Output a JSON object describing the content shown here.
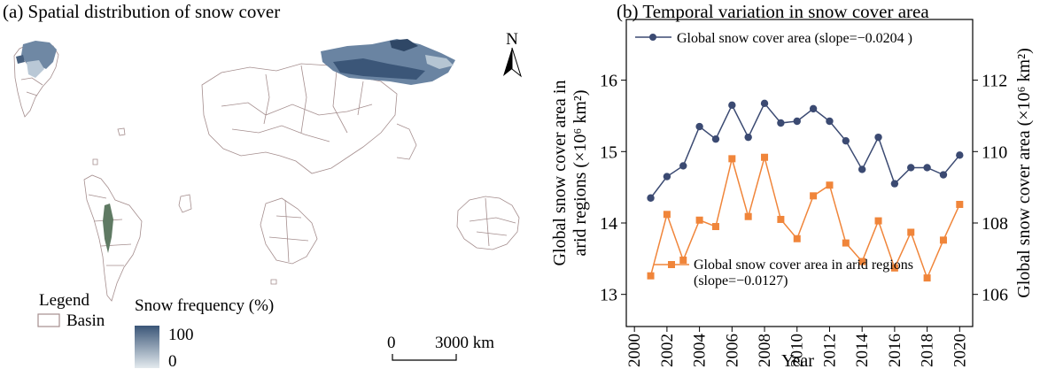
{
  "map": {
    "title": "(a) Spatial distribution of snow cover",
    "north_label": "N",
    "legend_title": "Legend",
    "legend_basin": "Basin",
    "snow_title": "Snow frequency (%)",
    "snow_max": "100",
    "snow_min": "0",
    "scale_start": "0",
    "scale_end": "3000 km",
    "colors": {
      "basin": "#a58e8e",
      "snow_dark": "#3b5678",
      "snow_light": "#dfe8ee",
      "veg": "#5f7a63"
    }
  },
  "chart_data": {
    "type": "line",
    "title": "(b) Temporal variation in snow cover area",
    "xlabel": "Year",
    "ylabel_left": [
      "Global snow cover area in",
      "arid regions (×10⁶ km²)"
    ],
    "ylabel_right": "Global snow cover area (×10⁶ km²)",
    "x": [
      2001,
      2002,
      2003,
      2004,
      2005,
      2006,
      2007,
      2008,
      2009,
      2010,
      2011,
      2012,
      2013,
      2014,
      2015,
      2016,
      2017,
      2018,
      2019,
      2020
    ],
    "xlim": [
      1999.5,
      2020.8
    ],
    "xticks": [
      "2000",
      "2002",
      "2004",
      "2006",
      "2008",
      "2010",
      "2012",
      "2014",
      "2016",
      "2018",
      "2020"
    ],
    "left_axis": {
      "ylim": [
        12.55,
        16.85
      ],
      "ticks": [
        "13",
        "14",
        "15",
        "16"
      ]
    },
    "right_axis": {
      "ylim": [
        105.1,
        113.7
      ],
      "ticks": [
        "106",
        "108",
        "110",
        "112"
      ]
    },
    "series": [
      {
        "name": "Global snow cover area (slope=−0.0204 )",
        "axis": "right",
        "color": "#3b4a72",
        "marker": "circle",
        "values": [
          108.7,
          109.3,
          109.6,
          110.7,
          110.35,
          111.3,
          110.4,
          111.35,
          110.8,
          110.85,
          111.2,
          110.85,
          110.3,
          109.5,
          110.4,
          109.1,
          109.55,
          109.55,
          109.35,
          109.9
        ]
      },
      {
        "name": "Global snow cover area in arid regions",
        "name_line2": "(slope=−0.0127)",
        "axis": "left",
        "color": "#f0853a",
        "marker": "square",
        "values": [
          13.26,
          14.12,
          13.48,
          14.04,
          13.95,
          14.9,
          14.09,
          14.92,
          14.05,
          13.78,
          14.38,
          14.53,
          13.72,
          13.46,
          14.03,
          13.37,
          13.87,
          13.23,
          13.76,
          14.26
        ]
      }
    ]
  }
}
